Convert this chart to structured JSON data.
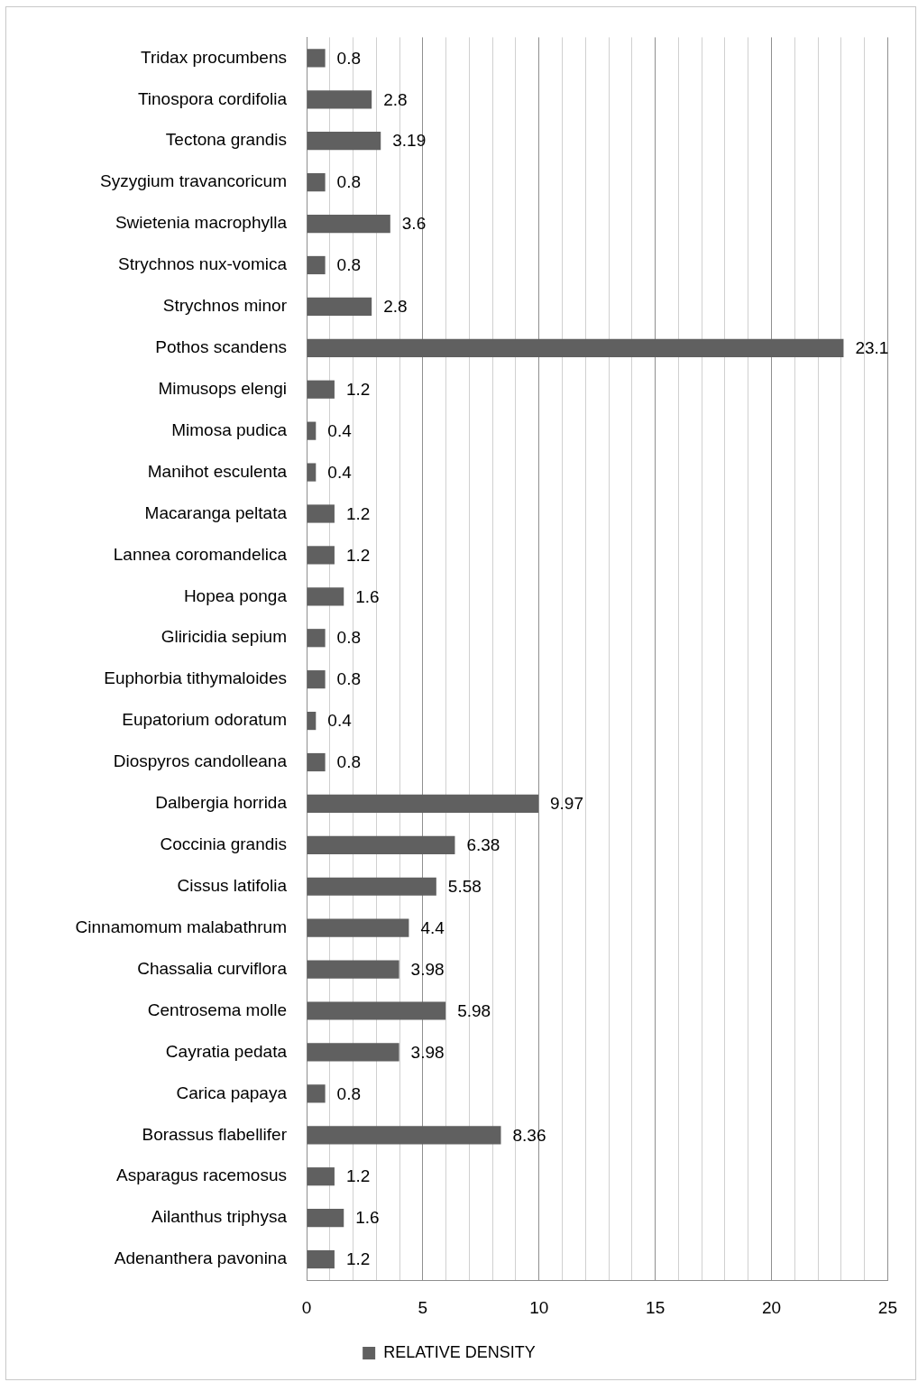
{
  "chart_data": {
    "type": "bar",
    "orientation": "horizontal",
    "categories": [
      "Tridax procumbens",
      "Tinospora cordifolia",
      "Tectona grandis",
      "Syzygium travancoricum",
      "Swietenia macrophylla",
      "Strychnos nux-vomica",
      "Strychnos minor",
      "Pothos scandens",
      "Mimusops elengi",
      "Mimosa pudica",
      "Manihot esculenta",
      "Macaranga peltata",
      "Lannea coromandelica",
      "Hopea ponga",
      "Gliricidia sepium",
      "Euphorbia tithymaloides",
      "Eupatorium odoratum",
      "Diospyros candolleana",
      "Dalbergia horrida",
      "Coccinia grandis",
      "Cissus latifolia",
      "Cinnamomum malabathrum",
      "Chassalia curviflora",
      "Centrosema molle",
      "Cayratia pedata",
      "Carica papaya",
      "Borassus flabellifer",
      "Asparagus racemosus",
      "Ailanthus triphysa",
      "Adenanthera pavonina"
    ],
    "series": [
      {
        "name": "RELATIVE DENSITY",
        "color": "#606060",
        "values": [
          0.8,
          2.8,
          3.19,
          0.8,
          3.6,
          0.8,
          2.8,
          23.1,
          1.2,
          0.4,
          0.4,
          1.2,
          1.2,
          1.6,
          0.8,
          0.8,
          0.4,
          0.8,
          9.97,
          6.38,
          5.58,
          4.4,
          3.98,
          5.98,
          3.98,
          0.8,
          8.36,
          1.2,
          1.6,
          1.2
        ]
      }
    ],
    "xlim": [
      0,
      25
    ],
    "xticks": [
      0,
      {
        "value": 1,
        "label": null
      },
      {
        "value": 2,
        "label": null
      },
      {
        "value": 3,
        "label": null
      },
      {
        "value": 4,
        "label": null
      },
      5,
      {
        "value": 6,
        "label": null
      },
      {
        "value": 7,
        "label": null
      },
      {
        "value": 8,
        "label": null
      },
      {
        "value": 9,
        "label": null
      },
      10,
      {
        "value": 11,
        "label": null
      },
      {
        "value": 12,
        "label": null
      },
      {
        "value": 13,
        "label": null
      },
      {
        "value": 14,
        "label": null
      },
      15,
      {
        "value": 16,
        "label": null
      },
      {
        "value": 17,
        "label": null
      },
      {
        "value": 18,
        "label": null
      },
      {
        "value": 19,
        "label": null
      },
      20,
      {
        "value": 21,
        "label": null
      },
      {
        "value": 22,
        "label": null
      },
      {
        "value": 23,
        "label": null
      },
      {
        "value": 24,
        "label": null
      },
      25
    ],
    "grid": "x",
    "legend": "bottom",
    "data_labels": true
  }
}
